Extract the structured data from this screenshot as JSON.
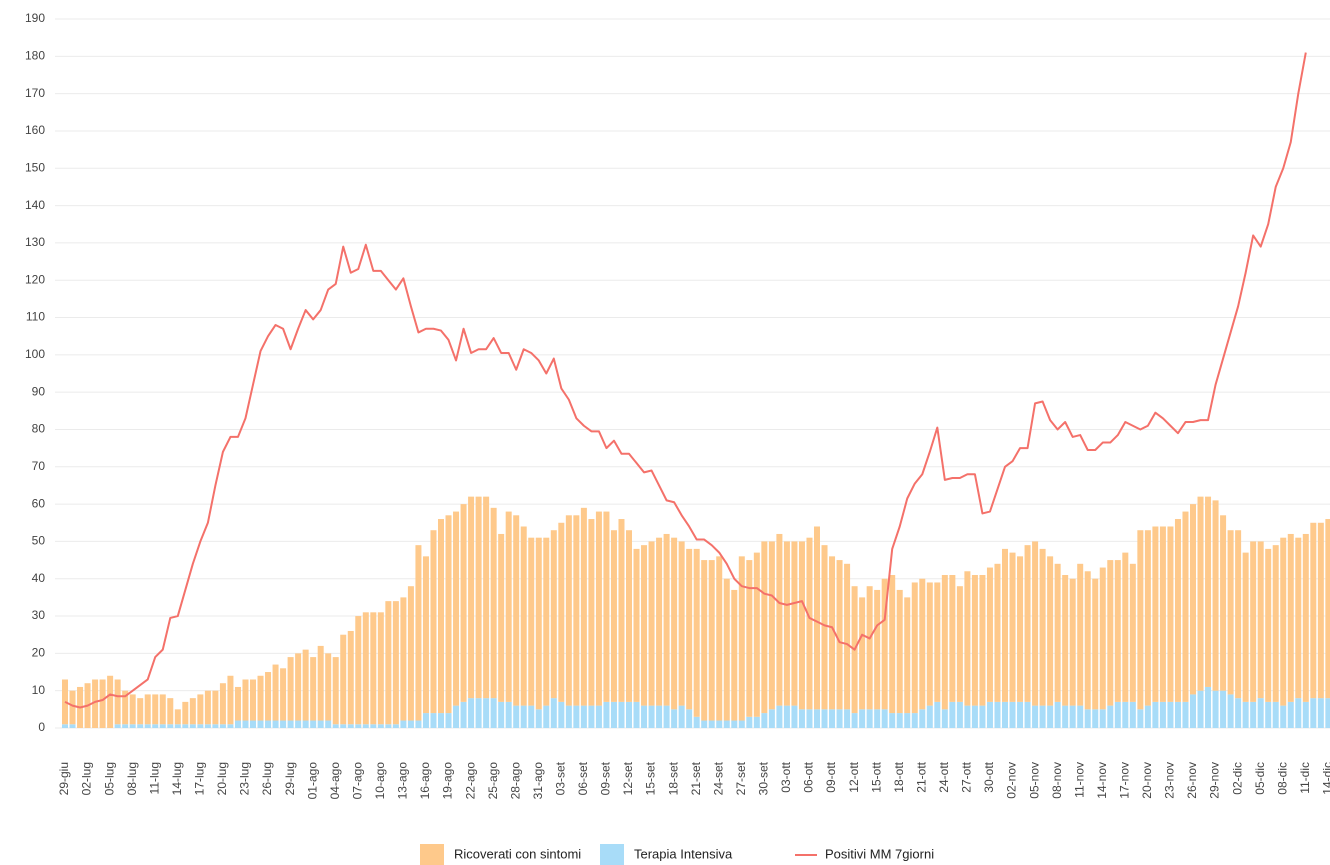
{
  "chart_data": {
    "type": "bar",
    "stacked": true,
    "grid": true,
    "categories": [
      "29-giu",
      null,
      null,
      "02-lug",
      null,
      null,
      "05-lug",
      null,
      null,
      "08-lug",
      null,
      null,
      "11-lug",
      null,
      null,
      "14-lug",
      null,
      null,
      "17-lug",
      null,
      null,
      "20-lug",
      null,
      null,
      "23-lug",
      null,
      null,
      "26-lug",
      null,
      null,
      "29-lug",
      null,
      null,
      "01-ago",
      null,
      null,
      "04-ago",
      null,
      null,
      "07-ago",
      null,
      null,
      "10-ago",
      null,
      null,
      "13-ago",
      null,
      null,
      "16-ago",
      null,
      null,
      "19-ago",
      null,
      null,
      "22-ago",
      null,
      null,
      "25-ago",
      null,
      null,
      "28-ago",
      null,
      null,
      "31-ago",
      null,
      null,
      "03-set",
      null,
      null,
      "06-set",
      null,
      null,
      "09-set",
      null,
      null,
      "12-set",
      null,
      null,
      "15-set",
      null,
      null,
      "18-set",
      null,
      null,
      "21-set",
      null,
      null,
      "24-set",
      null,
      null,
      "27-set",
      null,
      null,
      "30-set",
      null,
      null,
      "03-ott",
      null,
      null,
      "06-ott",
      null,
      null,
      "09-ott",
      null,
      null,
      "12-ott",
      null,
      null,
      "15-ott",
      null,
      null,
      "18-ott",
      null,
      null,
      "21-ott",
      null,
      null,
      "24-ott",
      null,
      null,
      "27-ott",
      null,
      null,
      "30-ott",
      null,
      null,
      "02-nov",
      null,
      null,
      "05-nov",
      null,
      null,
      "08-nov",
      null,
      null,
      "11-nov",
      null,
      null,
      "14-nov",
      null,
      null,
      "17-nov",
      null,
      null,
      "20-nov",
      null,
      null,
      "23-nov",
      null,
      null,
      "26-nov",
      null,
      null,
      "29-nov",
      null,
      null,
      "02-dic",
      null,
      null,
      "05-dic",
      null,
      null,
      "08-dic",
      null,
      null,
      "11-dic",
      null,
      null,
      "14-dic"
    ],
    "series": [
      {
        "name": "Ricoverati con sintomi",
        "type": "bar",
        "color": "#fec98b",
        "values": [
          12,
          9,
          11,
          12,
          13,
          13,
          14,
          12,
          9,
          8,
          7,
          8,
          8,
          8,
          7,
          4,
          6,
          7,
          8,
          9,
          9,
          11,
          13,
          9,
          11,
          11,
          12,
          13,
          15,
          14,
          17,
          18,
          19,
          17,
          20,
          18,
          18,
          24,
          25,
          29,
          30,
          30,
          30,
          33,
          33,
          33,
          36,
          47,
          42,
          49,
          52,
          53,
          52,
          53,
          54,
          54,
          54,
          51,
          45,
          51,
          51,
          48,
          45,
          46,
          45,
          45,
          48,
          51,
          51,
          53,
          50,
          52,
          51,
          46,
          49,
          46,
          41,
          43,
          44,
          45,
          46,
          46,
          44,
          43,
          45,
          43,
          43,
          44,
          38,
          35,
          44,
          42,
          44,
          46,
          45,
          46,
          44,
          44,
          45,
          46,
          49,
          44,
          41,
          40,
          39,
          34,
          30,
          33,
          32,
          35,
          37,
          33,
          31,
          35,
          35,
          33,
          32,
          36,
          34,
          31,
          36,
          35,
          35,
          36,
          37,
          41,
          40,
          39,
          42,
          44,
          42,
          40,
          37,
          35,
          34,
          38,
          37,
          35,
          38,
          39,
          38,
          40,
          37,
          48,
          47,
          47,
          47,
          47,
          49,
          51,
          51,
          52,
          51,
          51,
          47,
          44,
          45,
          40,
          43,
          42,
          41,
          42,
          45,
          45,
          43,
          45,
          47,
          47,
          48
        ]
      },
      {
        "name": "Terapia Intensiva",
        "type": "bar",
        "color": "#a8dcf8",
        "values": [
          1,
          1,
          0,
          0,
          0,
          0,
          0,
          1,
          1,
          1,
          1,
          1,
          1,
          1,
          1,
          1,
          1,
          1,
          1,
          1,
          1,
          1,
          1,
          2,
          2,
          2,
          2,
          2,
          2,
          2,
          2,
          2,
          2,
          2,
          2,
          2,
          1,
          1,
          1,
          1,
          1,
          1,
          1,
          1,
          1,
          2,
          2,
          2,
          4,
          4,
          4,
          4,
          6,
          7,
          8,
          8,
          8,
          8,
          7,
          7,
          6,
          6,
          6,
          5,
          6,
          8,
          7,
          6,
          6,
          6,
          6,
          6,
          7,
          7,
          7,
          7,
          7,
          6,
          6,
          6,
          6,
          5,
          6,
          5,
          3,
          2,
          2,
          2,
          2,
          2,
          2,
          3,
          3,
          4,
          5,
          6,
          6,
          6,
          5,
          5,
          5,
          5,
          5,
          5,
          5,
          4,
          5,
          5,
          5,
          5,
          4,
          4,
          4,
          4,
          5,
          6,
          7,
          5,
          7,
          7,
          6,
          6,
          6,
          7,
          7,
          7,
          7,
          7,
          7,
          6,
          6,
          6,
          7,
          6,
          6,
          6,
          5,
          5,
          5,
          6,
          7,
          7,
          7,
          5,
          6,
          7,
          7,
          7,
          7,
          7,
          9,
          10,
          11,
          10,
          10,
          9,
          8,
          7,
          7,
          8,
          7,
          7,
          6,
          7,
          8,
          7,
          8,
          8,
          8
        ]
      },
      {
        "name": "Positivi MM 7giorni",
        "type": "line",
        "color": "#f4716a",
        "values": [
          7,
          6,
          5.5,
          6,
          7,
          7.5,
          9,
          8.5,
          8.5,
          10,
          11.5,
          13,
          19,
          21,
          29.5,
          30,
          37,
          44,
          50,
          55,
          65,
          74,
          78,
          78,
          83,
          92,
          101,
          105,
          108,
          107,
          101.5,
          107,
          112,
          109.5,
          112,
          117.5,
          119,
          129,
          122,
          123,
          129.5,
          122.5,
          122.5,
          120,
          117.5,
          120.5,
          113,
          106,
          107,
          107,
          106.5,
          104,
          98.5,
          107,
          100.5,
          101.5,
          101.5,
          104.5,
          100.5,
          100.5,
          96,
          101.5,
          100.5,
          98.5,
          95,
          99,
          91,
          88,
          83,
          81,
          79.5,
          79.5,
          75,
          77,
          73.5,
          73.5,
          71,
          68.5,
          69,
          65,
          61,
          60.5,
          57,
          54,
          50.5,
          50.5,
          49,
          47,
          44,
          40,
          38,
          37.5,
          37.5,
          36,
          35.5,
          33.5,
          33,
          33.5,
          34,
          29.5,
          28.5,
          27.5,
          27,
          23,
          22.5,
          21,
          25,
          24,
          27.5,
          29,
          48,
          54,
          61.5,
          65.5,
          68,
          74,
          80.5,
          66.5,
          67,
          67,
          68,
          68,
          57.5,
          58,
          64,
          70,
          71.5,
          75,
          75,
          87,
          87.5,
          82.5,
          80,
          82,
          78,
          78.5,
          74.5,
          74.5,
          76.5,
          76.5,
          78.5,
          82,
          81,
          80,
          81,
          84.5,
          83,
          81,
          79,
          82,
          82,
          82.5,
          82.5,
          92,
          99,
          106,
          113,
          122,
          132,
          129,
          135,
          145,
          150,
          157,
          170,
          181,
          null,
          null,
          null
        ]
      }
    ],
    "ylim": [
      0,
      190
    ],
    "yticks": [
      0,
      10,
      20,
      30,
      40,
      50,
      60,
      70,
      80,
      90,
      100,
      110,
      120,
      130,
      140,
      150,
      160,
      170,
      180,
      190
    ]
  }
}
